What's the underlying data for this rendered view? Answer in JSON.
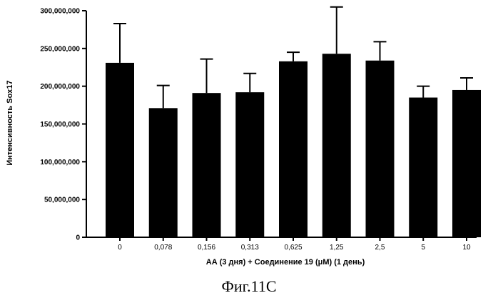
{
  "chart_data": {
    "type": "bar",
    "categories": [
      "0",
      "0,078",
      "0,156",
      "0,313",
      "0,625",
      "1,25",
      "2,5",
      "5",
      "10"
    ],
    "values": [
      231000000,
      171000000,
      191000000,
      192000000,
      233000000,
      243000000,
      234000000,
      185000000,
      195000000
    ],
    "errors": [
      52000000,
      30000000,
      45000000,
      25000000,
      12000000,
      62000000,
      25000000,
      15000000,
      16000000
    ],
    "ylim": [
      0,
      300000000
    ],
    "yticks": [
      0,
      50000000,
      100000000,
      150000000,
      200000000,
      250000000,
      300000000
    ],
    "ytick_labels": [
      "0",
      "50,000,000",
      "100,000,000",
      "150,000,000",
      "200,000,000",
      "250,000,000",
      "300,000,000"
    ],
    "ylabel": "Интенсивность Sox17",
    "xlabel": "АА (3 дня) + Соединение 19 (μМ) (1 день)",
    "bar_color": "#000000",
    "grid": false
  },
  "figure": {
    "caption": "Фиг.11С"
  }
}
